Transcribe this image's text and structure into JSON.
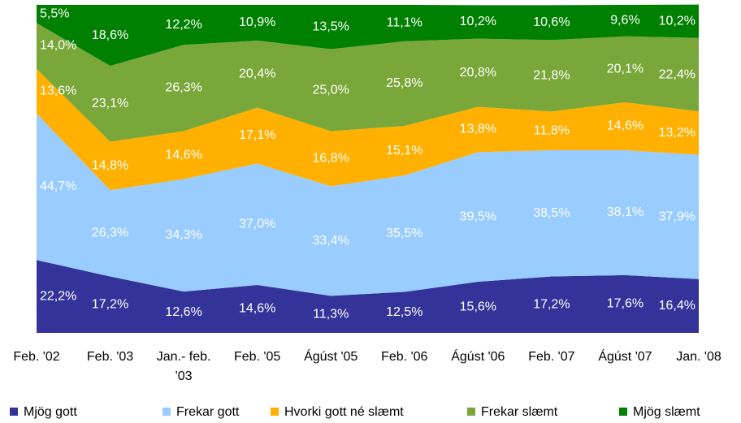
{
  "chart_data": {
    "type": "stacked_area",
    "categories": [
      "Feb. '02",
      "Feb. '03",
      "Jan.- feb. '03",
      "Feb. '05",
      "Ágúst '05",
      "Feb. '06",
      "Ágúst '06",
      "Feb. '07",
      "Ágúst '07",
      "Jan. '08"
    ],
    "ylim": [
      0,
      100
    ],
    "series": [
      {
        "name": "Mjög gott",
        "color": "#333399",
        "values": [
          22.2,
          17.2,
          12.6,
          14.6,
          11.3,
          12.5,
          15.6,
          17.2,
          17.6,
          16.4
        ],
        "value_labels": [
          "22,2%",
          "17,2%",
          "12,6%",
          "14,6%",
          "11,3%",
          "12,5%",
          "15,6%",
          "17,2%",
          "17,6%",
          "16,4%"
        ]
      },
      {
        "name": "Frekar gott",
        "color": "#99ccff",
        "values": [
          44.7,
          26.3,
          34.3,
          37.0,
          33.4,
          35.5,
          39.5,
          38.5,
          38.1,
          37.9
        ],
        "value_labels": [
          "44,7%",
          "26,3%",
          "34,3%",
          "37,0%",
          "33,4%",
          "35,5%",
          "39,5%",
          "38,5%",
          "38,1%",
          "37,9%"
        ]
      },
      {
        "name": "Hvorki gott né slæmt",
        "color": "#ffb000",
        "values": [
          13.6,
          14.8,
          14.6,
          17.1,
          16.8,
          15.1,
          13.8,
          11.8,
          14.6,
          13.2
        ],
        "value_labels": [
          "13,6%",
          "14,8%",
          "14,6%",
          "17,1%",
          "16,8%",
          "15,1%",
          "13,8%",
          "11,8%",
          "14,6%",
          "13,2%"
        ]
      },
      {
        "name": "Frekar slæmt",
        "color": "#7aa73a",
        "values": [
          14.0,
          23.1,
          26.3,
          20.4,
          25.0,
          25.8,
          20.8,
          21.8,
          20.1,
          22.4
        ],
        "value_labels": [
          "14,0%",
          "23,1%",
          "26,3%",
          "20,4%",
          "25,0%",
          "25,8%",
          "20,8%",
          "21,8%",
          "20,1%",
          "22,4%"
        ]
      },
      {
        "name": "Mjög slæmt",
        "color": "#008000",
        "values": [
          5.5,
          18.6,
          12.2,
          10.9,
          13.5,
          11.1,
          10.2,
          10.6,
          9.6,
          10.2
        ],
        "value_labels": [
          "5,5%",
          "18,6%",
          "12,2%",
          "10,9%",
          "13,5%",
          "11,1%",
          "10,2%",
          "10,6%",
          "9,6%",
          "10,2%"
        ]
      }
    ]
  }
}
